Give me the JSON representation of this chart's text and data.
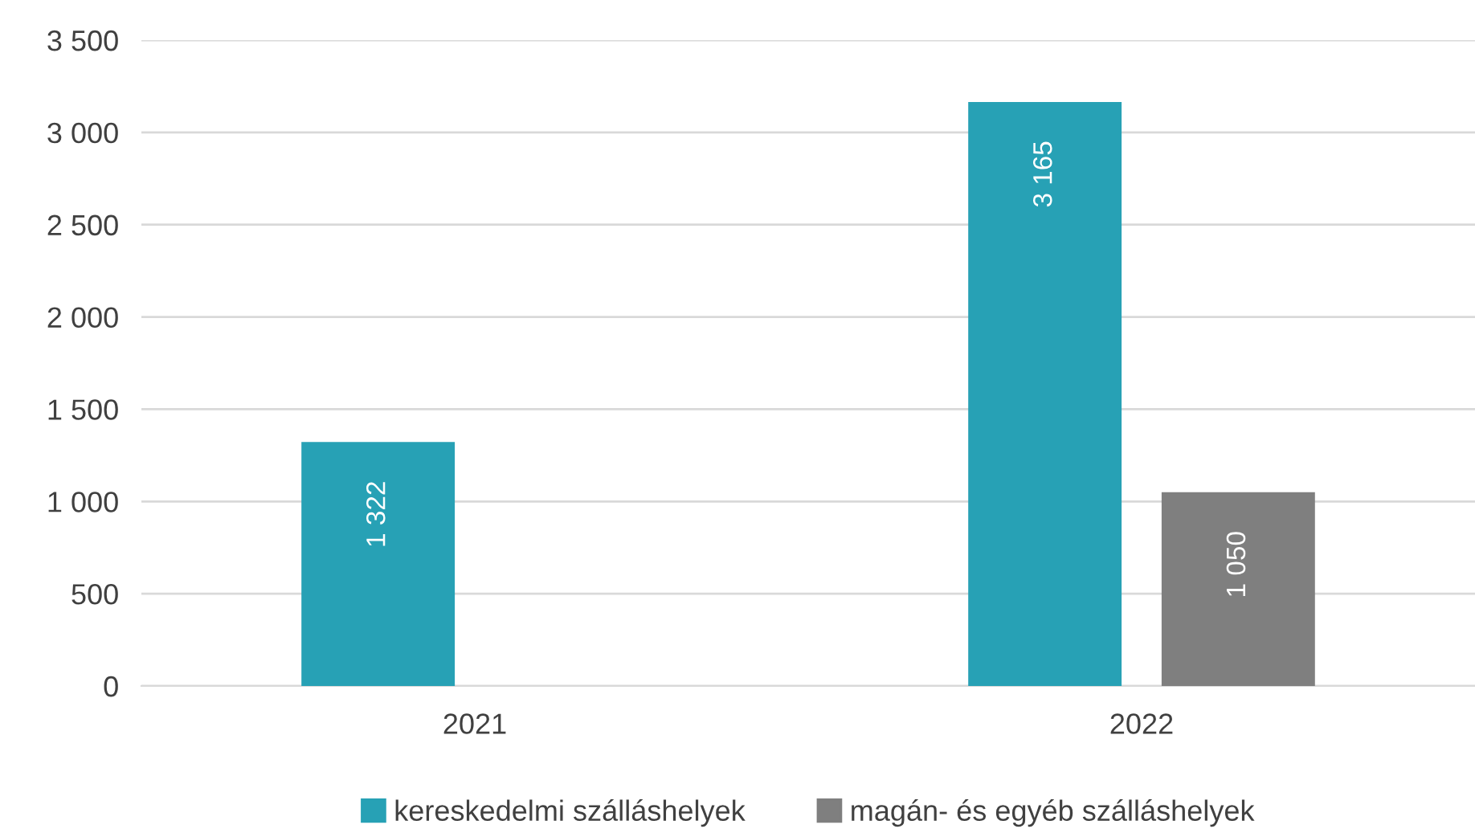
{
  "chart_data": {
    "type": "bar",
    "categories": [
      "2021",
      "2022"
    ],
    "series": [
      {
        "name": "kereskedelmi szálláshelyek",
        "color": "#27a1b5",
        "values": [
          1322,
          3165
        ],
        "value_labels": [
          "1 322",
          "3 165"
        ]
      },
      {
        "name": "magán- és egyéb szálláshelyek",
        "color": "#7f7f7f",
        "values": [
          null,
          1050
        ],
        "value_labels": [
          null,
          "1 050"
        ]
      }
    ],
    "ylim": [
      0,
      3500
    ],
    "yticks": [
      0,
      {
        "value": 500,
        "label": "500"
      },
      {
        "value": 1000,
        "label": "1 000"
      },
      {
        "value": 1500,
        "label": "1 500"
      },
      {
        "value": 2000,
        "label": "2 000"
      },
      {
        "value": 2500,
        "label": "2 500"
      },
      {
        "value": 3000,
        "label": "3 000"
      },
      {
        "value": 3500,
        "label": "3 500"
      }
    ],
    "grid": "y",
    "legend": "bottom"
  }
}
